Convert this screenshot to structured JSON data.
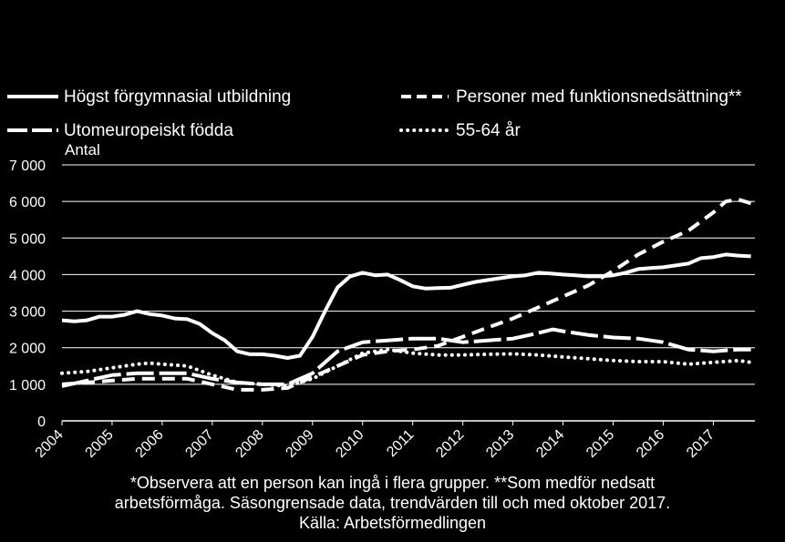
{
  "chart_data": {
    "type": "line",
    "ylabel": "Antal",
    "ylim": [
      0,
      7000
    ],
    "y_ticks": [
      0,
      1000,
      2000,
      3000,
      4000,
      5000,
      6000,
      7000
    ],
    "y_tick_labels": [
      "0",
      "1 000",
      "2 000",
      "3 000",
      "4 000",
      "5 000",
      "6 000",
      "7 000"
    ],
    "x_ticks": [
      2004,
      2005,
      2006,
      2007,
      2008,
      2009,
      2010,
      2011,
      2012,
      2013,
      2014,
      2015,
      2016,
      2017
    ],
    "x_tick_labels": [
      "2004",
      "2005",
      "2006",
      "2007",
      "2008",
      "2009",
      "2010",
      "2011",
      "2012",
      "2013",
      "2014",
      "2015",
      "2016",
      "2017"
    ],
    "xlim": [
      2004,
      2017.83
    ],
    "grid": "horizontal",
    "legend_position": "top",
    "background": "#000000",
    "line_color": "#ffffff",
    "series": [
      {
        "name": "Högst förgymnasial utbildning",
        "style": "solid",
        "x": [
          2004.0,
          2004.25,
          2004.5,
          2004.75,
          2005.0,
          2005.25,
          2005.5,
          2005.75,
          2006.0,
          2006.25,
          2006.5,
          2006.75,
          2007.0,
          2007.25,
          2007.5,
          2007.75,
          2008.0,
          2008.25,
          2008.5,
          2008.75,
          2009.0,
          2009.25,
          2009.5,
          2009.75,
          2010.0,
          2010.25,
          2010.5,
          2010.75,
          2011.0,
          2011.25,
          2011.5,
          2011.75,
          2012.0,
          2012.25,
          2012.5,
          2012.75,
          2013.0,
          2013.25,
          2013.5,
          2013.75,
          2014.0,
          2014.25,
          2014.5,
          2014.75,
          2015.0,
          2015.25,
          2015.5,
          2015.75,
          2016.0,
          2016.25,
          2016.5,
          2016.75,
          2017.0,
          2017.25,
          2017.5,
          2017.75
        ],
        "values": [
          2750,
          2720,
          2750,
          2850,
          2850,
          2900,
          3000,
          2920,
          2880,
          2800,
          2780,
          2650,
          2400,
          2200,
          1900,
          1820,
          1820,
          1780,
          1720,
          1780,
          2300,
          3000,
          3650,
          3950,
          4050,
          3980,
          4000,
          3850,
          3680,
          3620,
          3630,
          3640,
          3720,
          3800,
          3850,
          3900,
          3950,
          3980,
          4050,
          4030,
          4000,
          3980,
          3950,
          3950,
          3980,
          4050,
          4150,
          4180,
          4200,
          4250,
          4300,
          4450,
          4480,
          4550,
          4520,
          4500
        ]
      },
      {
        "name": "Personer med funktionsnedsättning**",
        "style": "dashed",
        "x": [
          2004.0,
          2004.5,
          2005.0,
          2005.5,
          2006.0,
          2006.5,
          2007.0,
          2007.5,
          2008.0,
          2008.5,
          2009.0,
          2009.5,
          2010.0,
          2010.5,
          2011.0,
          2011.5,
          2012.0,
          2012.5,
          2013.0,
          2013.5,
          2014.0,
          2014.5,
          2015.0,
          2015.5,
          2016.0,
          2016.5,
          2017.0,
          2017.25,
          2017.5,
          2017.75
        ],
        "values": [
          1000,
          1050,
          1100,
          1150,
          1150,
          1150,
          1000,
          850,
          850,
          900,
          1200,
          1500,
          1800,
          1900,
          1950,
          2050,
          2300,
          2550,
          2800,
          3100,
          3400,
          3700,
          4100,
          4550,
          4900,
          5200,
          5700,
          6000,
          6050,
          5950
        ]
      },
      {
        "name": "Utomeuropeiskt födda",
        "style": "longdash",
        "x": [
          2004.0,
          2004.5,
          2005.0,
          2005.5,
          2006.0,
          2006.5,
          2007.0,
          2007.5,
          2008.0,
          2008.5,
          2009.0,
          2009.5,
          2010.0,
          2010.5,
          2011.0,
          2011.5,
          2012.0,
          2012.5,
          2013.0,
          2013.5,
          2013.8,
          2014.0,
          2014.5,
          2015.0,
          2015.5,
          2016.0,
          2016.5,
          2017.0,
          2017.5,
          2017.75
        ],
        "values": [
          950,
          1100,
          1250,
          1300,
          1300,
          1300,
          1150,
          1050,
          1000,
          1000,
          1300,
          1900,
          2150,
          2200,
          2250,
          2250,
          2150,
          2200,
          2250,
          2400,
          2500,
          2450,
          2350,
          2280,
          2250,
          2150,
          1950,
          1900,
          1950,
          1950
        ]
      },
      {
        "name": "55-64 år",
        "style": "dotted",
        "x": [
          2004.0,
          2004.5,
          2005.0,
          2005.5,
          2005.75,
          2006.0,
          2006.5,
          2007.0,
          2007.5,
          2008.0,
          2008.5,
          2009.0,
          2009.5,
          2010.0,
          2010.5,
          2011.0,
          2011.5,
          2012.0,
          2012.5,
          2013.0,
          2013.5,
          2014.0,
          2014.5,
          2015.0,
          2015.5,
          2016.0,
          2016.5,
          2017.0,
          2017.5,
          2017.75
        ],
        "values": [
          1300,
          1350,
          1450,
          1550,
          1580,
          1550,
          1500,
          1250,
          1050,
          1000,
          950,
          1150,
          1500,
          1850,
          1950,
          1850,
          1800,
          1800,
          1820,
          1830,
          1800,
          1750,
          1700,
          1650,
          1620,
          1620,
          1550,
          1600,
          1650,
          1600
        ]
      }
    ]
  },
  "footnote": {
    "line1": "*Observera att en person kan ingå i flera grupper. **Som medför nedsatt",
    "line2": "arbetsförmåga. Säsongrensade data, trendvärden till och med oktober 2017.",
    "line3": "Källa: Arbetsförmedlingen"
  }
}
